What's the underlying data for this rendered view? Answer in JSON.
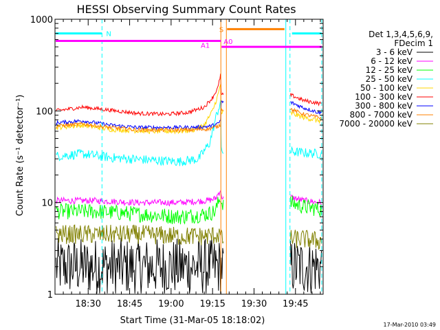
{
  "chart_data": {
    "type": "line",
    "title": "HESSI Observing Summary Count Rates",
    "xlabel": "Start Time (31-Mar-05 18:18:02)",
    "ylabel": "Count Rate (s⁻¹ detector⁻¹)",
    "y_scale": "log",
    "ylim": [
      1,
      1000
    ],
    "y_ticks": [
      1,
      10,
      100,
      1000
    ],
    "y_tick_labels": [
      "1",
      "10",
      "100",
      "1000"
    ],
    "xlim_minutes": [
      0,
      97
    ],
    "x_ticks_minutes": [
      12,
      27,
      42,
      57,
      72,
      87
    ],
    "x_tick_labels": [
      "18:30",
      "18:45",
      "19:00",
      "19:15",
      "19:30",
      "19:45"
    ],
    "legend_header": [
      "Det 1,3,4,5,6,9,",
      "FDecim 1"
    ],
    "legend_position": "right",
    "timestamp": "17-Mar-2010 03:49",
    "data_gaps_minutes": [
      [
        0,
        0.4
      ],
      [
        61,
        85
      ],
      [
        96.5,
        97
      ]
    ],
    "flag_lines": [
      {
        "label": "N",
        "level": 700,
        "color": "#00ffff",
        "segments": [
          [
            0,
            17
          ],
          [
            85.5,
            96.5
          ]
        ]
      },
      {
        "label": "A1",
        "level": 580,
        "color": "#ff00ff",
        "segments": [
          [
            0,
            60
          ]
        ]
      },
      {
        "label": "A0",
        "level": 500,
        "color": "#ff00ff",
        "segments": [
          [
            60,
            96.5
          ]
        ]
      },
      {
        "label": "S",
        "level": 780,
        "color": "#ff8000",
        "segments": [
          [
            62,
            83
          ]
        ]
      }
    ],
    "vertical_lines": [
      {
        "x": 17,
        "color": "#00ffff",
        "style": "dashed"
      },
      {
        "x": 60,
        "color": "#ff8000",
        "style": "solid"
      },
      {
        "x": 62,
        "color": "#ff8000",
        "style": "solid"
      },
      {
        "x": 83.5,
        "color": "#00ffff",
        "style": "solid"
      },
      {
        "x": 85,
        "color": "#00ffff",
        "style": "dashed"
      },
      {
        "x": 96.5,
        "color": "#00ffff",
        "style": "dashed"
      }
    ],
    "series": [
      {
        "name": "3 - 6 keV",
        "color": "#000000",
        "noise": 0.9,
        "points": [
          [
            0,
            2
          ],
          [
            15,
            2
          ],
          [
            30,
            2
          ],
          [
            45,
            2
          ],
          [
            58,
            2
          ],
          [
            60,
            2
          ],
          [
            85,
            2
          ],
          [
            96,
            2
          ]
        ]
      },
      {
        "name": "6 - 12 keV",
        "color": "#ff00ff",
        "noise": 0.1,
        "points": [
          [
            0,
            10.5
          ],
          [
            15,
            10.5
          ],
          [
            30,
            10
          ],
          [
            45,
            10
          ],
          [
            55,
            10.5
          ],
          [
            58,
            11
          ],
          [
            60,
            14
          ],
          [
            85,
            11.5
          ],
          [
            90,
            10.5
          ],
          [
            96,
            10
          ]
        ]
      },
      {
        "name": "12 - 25 keV",
        "color": "#00ff00",
        "noise": 0.25,
        "points": [
          [
            0,
            8
          ],
          [
            15,
            8
          ],
          [
            30,
            7.5
          ],
          [
            45,
            7
          ],
          [
            55,
            7.5
          ],
          [
            58,
            8
          ],
          [
            60,
            12
          ],
          [
            85,
            10
          ],
          [
            90,
            9
          ],
          [
            96,
            8.5
          ]
        ]
      },
      {
        "name": "25 - 50 keV",
        "color": "#00ffff",
        "noise": 0.15,
        "points": [
          [
            0,
            32
          ],
          [
            10,
            34
          ],
          [
            20,
            31
          ],
          [
            35,
            29
          ],
          [
            45,
            28
          ],
          [
            52,
            30
          ],
          [
            56,
            45
          ],
          [
            58,
            80
          ],
          [
            60,
            130
          ],
          [
            85,
            36
          ],
          [
            90,
            35
          ],
          [
            96,
            34
          ]
        ]
      },
      {
        "name": "50 - 100 keV",
        "color": "#ffd700",
        "noise": 0.08,
        "points": [
          [
            0,
            66
          ],
          [
            10,
            70
          ],
          [
            20,
            63
          ],
          [
            35,
            60
          ],
          [
            45,
            60
          ],
          [
            50,
            62
          ],
          [
            54,
            70
          ],
          [
            57,
            100
          ],
          [
            59,
            150
          ],
          [
            60,
            200
          ],
          [
            85,
            95
          ],
          [
            90,
            85
          ],
          [
            96,
            78
          ]
        ]
      },
      {
        "name": "100 - 300 keV",
        "color": "#ff0000",
        "noise": 0.06,
        "points": [
          [
            0,
            100
          ],
          [
            10,
            110
          ],
          [
            20,
            102
          ],
          [
            30,
            94
          ],
          [
            40,
            92
          ],
          [
            48,
            96
          ],
          [
            54,
            110
          ],
          [
            57,
            140
          ],
          [
            59,
            180
          ],
          [
            60,
            260
          ],
          [
            85,
            150
          ],
          [
            90,
            130
          ],
          [
            96,
            120
          ]
        ]
      },
      {
        "name": "300 - 800 keV",
        "color": "#0000ff",
        "noise": 0.06,
        "points": [
          [
            0,
            74
          ],
          [
            10,
            78
          ],
          [
            20,
            70
          ],
          [
            30,
            66
          ],
          [
            40,
            66
          ],
          [
            50,
            66
          ],
          [
            56,
            68
          ],
          [
            59,
            72
          ],
          [
            60,
            80
          ],
          [
            85,
            125
          ],
          [
            90,
            108
          ],
          [
            96,
            95
          ]
        ]
      },
      {
        "name": "800 - 7000 keV",
        "color": "#ff8000",
        "noise": 0.06,
        "points": [
          [
            0,
            68
          ],
          [
            10,
            72
          ],
          [
            20,
            66
          ],
          [
            30,
            62
          ],
          [
            40,
            62
          ],
          [
            50,
            62
          ],
          [
            56,
            64
          ],
          [
            59,
            68
          ],
          [
            60,
            72
          ],
          [
            85,
            105
          ],
          [
            90,
            92
          ],
          [
            96,
            84
          ]
        ]
      },
      {
        "name": "7000 - 20000 keV",
        "color": "#808000",
        "noise": 0.3,
        "points": [
          [
            0,
            4.5
          ],
          [
            15,
            4.5
          ],
          [
            30,
            4.5
          ],
          [
            45,
            4.3
          ],
          [
            55,
            4.3
          ],
          [
            60,
            4.5
          ],
          [
            85,
            4
          ],
          [
            90,
            4
          ],
          [
            96,
            3.8
          ]
        ]
      }
    ]
  }
}
